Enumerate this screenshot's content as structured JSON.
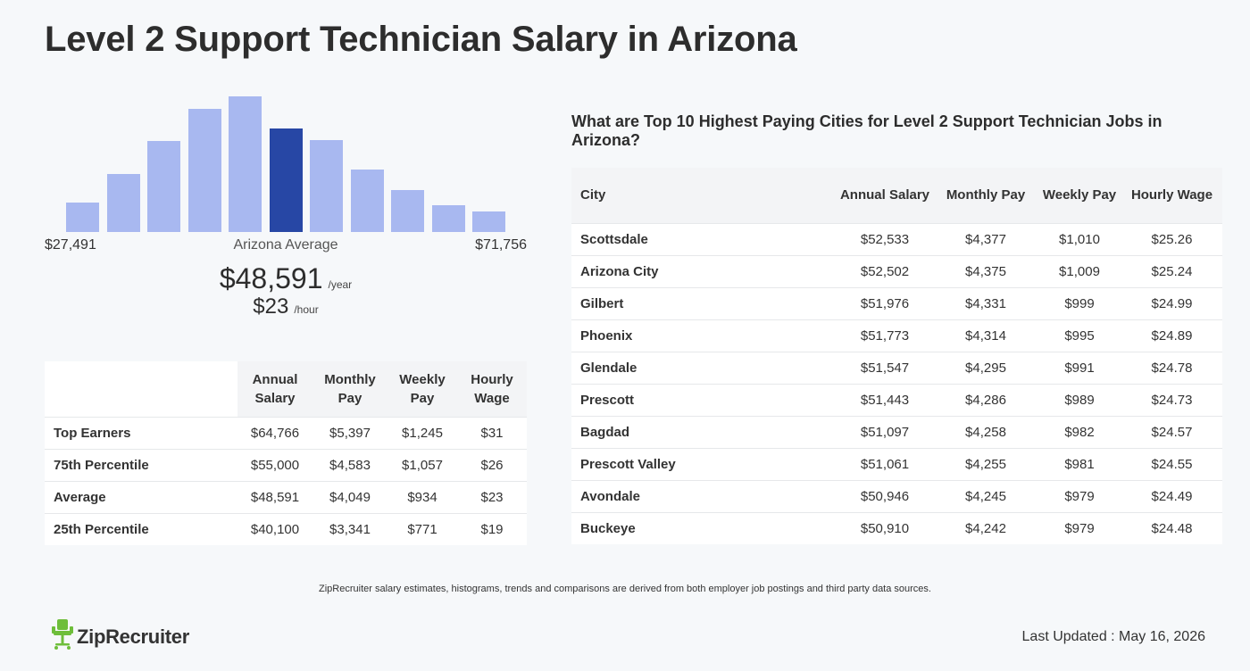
{
  "title": "Level 2 Support Technician Salary in Arizona",
  "histogram": {
    "bar_levels": [
      0.22,
      0.43,
      0.67,
      0.91,
      1.0,
      0.76,
      0.68,
      0.46,
      0.31,
      0.2,
      0.15
    ],
    "active_index": 5,
    "min_label": "$27,491",
    "max_label": "$71,756",
    "avg_label": "Arizona Average",
    "colors": {
      "bar": "#a8b8f0",
      "active": "#2747a5"
    }
  },
  "average": {
    "yearly": "$48,591",
    "yearly_unit": "/year",
    "hourly": "$23",
    "hourly_unit": "/hour"
  },
  "percentile_table": {
    "headers": [
      "Annual Salary",
      "Monthly Pay",
      "Weekly Pay",
      "Hourly Wage"
    ],
    "rows": [
      {
        "label": "Top Earners",
        "values": [
          "$64,766",
          "$5,397",
          "$1,245",
          "$31"
        ]
      },
      {
        "label": "75th Percentile",
        "values": [
          "$55,000",
          "$4,583",
          "$1,057",
          "$26"
        ]
      },
      {
        "label": "Average",
        "values": [
          "$48,591",
          "$4,049",
          "$934",
          "$23"
        ]
      },
      {
        "label": "25th Percentile",
        "values": [
          "$40,100",
          "$3,341",
          "$771",
          "$19"
        ]
      }
    ]
  },
  "cities": {
    "title": "What are Top 10 Highest Paying Cities for Level 2 Support Technician Jobs in Arizona?",
    "headers": [
      "City",
      "Annual Salary",
      "Monthly Pay",
      "Weekly Pay",
      "Hourly Wage"
    ],
    "rows": [
      {
        "city": "Scottsdale",
        "values": [
          "$52,533",
          "$4,377",
          "$1,010",
          "$25.26"
        ]
      },
      {
        "city": "Arizona City",
        "values": [
          "$52,502",
          "$4,375",
          "$1,009",
          "$25.24"
        ]
      },
      {
        "city": "Gilbert",
        "values": [
          "$51,976",
          "$4,331",
          "$999",
          "$24.99"
        ]
      },
      {
        "city": "Phoenix",
        "values": [
          "$51,773",
          "$4,314",
          "$995",
          "$24.89"
        ]
      },
      {
        "city": "Glendale",
        "values": [
          "$51,547",
          "$4,295",
          "$991",
          "$24.78"
        ]
      },
      {
        "city": "Prescott",
        "values": [
          "$51,443",
          "$4,286",
          "$989",
          "$24.73"
        ]
      },
      {
        "city": "Bagdad",
        "values": [
          "$51,097",
          "$4,258",
          "$982",
          "$24.57"
        ]
      },
      {
        "city": "Prescott Valley",
        "values": [
          "$51,061",
          "$4,255",
          "$981",
          "$24.55"
        ]
      },
      {
        "city": "Avondale",
        "values": [
          "$50,946",
          "$4,245",
          "$979",
          "$24.49"
        ]
      },
      {
        "city": "Buckeye",
        "values": [
          "$50,910",
          "$4,242",
          "$979",
          "$24.48"
        ]
      }
    ]
  },
  "footer": {
    "disclaimer": "ZipRecruiter salary estimates, histograms, trends and comparisons are derived from both employer job postings and third party data sources.",
    "logo_text": "ZipRecruiter",
    "logo_icon": "chair-icon",
    "last_updated": "Last Updated : May 16, 2026"
  }
}
